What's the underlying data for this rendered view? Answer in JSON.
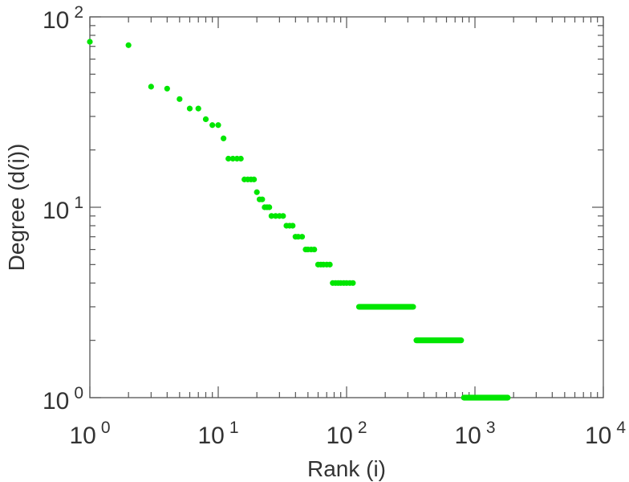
{
  "chart_data": {
    "type": "scatter",
    "xlabel": "Rank (i)",
    "ylabel": "Degree (d(i))",
    "xscale": "log",
    "yscale": "log",
    "xlim": [
      1,
      10000
    ],
    "ylim": [
      1,
      100
    ],
    "grid": false,
    "legend": "none",
    "marker_color": "#00e600",
    "x_ticks": [
      {
        "base": "10",
        "exp": "0",
        "value": 1
      },
      {
        "base": "10",
        "exp": "1",
        "value": 10
      },
      {
        "base": "10",
        "exp": "2",
        "value": 100
      },
      {
        "base": "10",
        "exp": "3",
        "value": 1000
      },
      {
        "base": "10",
        "exp": "4",
        "value": 10000
      }
    ],
    "y_ticks": [
      {
        "base": "10",
        "exp": "0",
        "value": 1
      },
      {
        "base": "10",
        "exp": "1",
        "value": 10
      },
      {
        "base": "10",
        "exp": "2",
        "value": 100
      }
    ],
    "points": [
      [
        1,
        74
      ],
      [
        2,
        71
      ],
      [
        3,
        43
      ],
      [
        4,
        42
      ],
      [
        5,
        37
      ],
      [
        6,
        33
      ],
      [
        7,
        33
      ],
      [
        8,
        29
      ],
      [
        9,
        27
      ],
      [
        10,
        27
      ],
      [
        11,
        23
      ],
      [
        12,
        18
      ],
      [
        13,
        18
      ],
      [
        14,
        18
      ],
      [
        15,
        18
      ],
      [
        16,
        14
      ],
      [
        17,
        14
      ],
      [
        18,
        14
      ],
      [
        19,
        14
      ],
      [
        20,
        12
      ],
      [
        21,
        11
      ],
      [
        22,
        11
      ],
      [
        23,
        10
      ],
      [
        24,
        10
      ],
      [
        25,
        10
      ],
      [
        26,
        9
      ],
      [
        28,
        9
      ],
      [
        30,
        9
      ],
      [
        32,
        9
      ],
      [
        34,
        8
      ],
      [
        36,
        8
      ],
      [
        38,
        8
      ],
      [
        40,
        7
      ],
      [
        42,
        7
      ],
      [
        45,
        7
      ],
      [
        48,
        6
      ],
      [
        50,
        6
      ],
      [
        53,
        6
      ],
      [
        56,
        6
      ],
      [
        60,
        5
      ],
      [
        63,
        5
      ],
      [
        66,
        5
      ],
      [
        70,
        5
      ],
      [
        74,
        5
      ],
      [
        78,
        4
      ],
      [
        82,
        4
      ],
      [
        86,
        4
      ],
      [
        90,
        4
      ],
      [
        95,
        4
      ],
      [
        100,
        4
      ],
      [
        106,
        4
      ],
      [
        112,
        4
      ]
    ],
    "runs": [
      {
        "y": 3,
        "x_start": 125,
        "x_end": 330
      },
      {
        "y": 2,
        "x_start": 350,
        "x_end": 780
      },
      {
        "y": 1,
        "x_start": 820,
        "x_end": 1800
      }
    ]
  }
}
